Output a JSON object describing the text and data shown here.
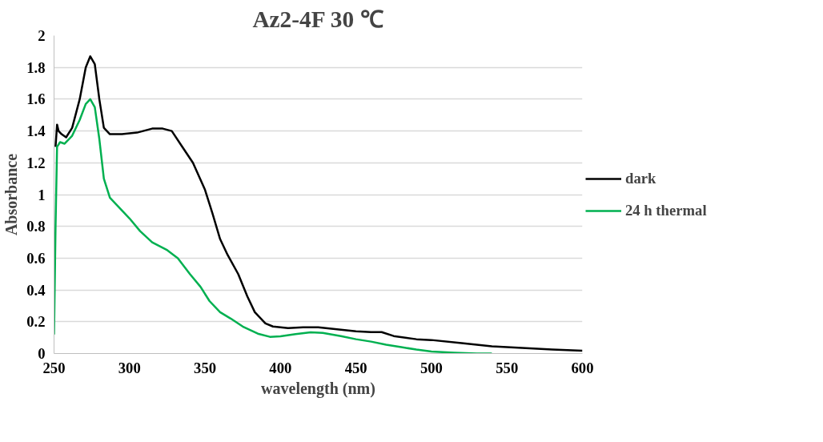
{
  "chart_data": {
    "type": "line",
    "title": "Az2-4F 30 ℃",
    "xlabel": "wavelength (nm)",
    "ylabel": "Absorbance",
    "xlim": [
      250,
      600
    ],
    "xticks": [
      250,
      300,
      350,
      400,
      450,
      500,
      550,
      600
    ],
    "ylim": [
      0,
      2
    ],
    "yticks": [
      0,
      0.2,
      0.4,
      0.6,
      0.8,
      1,
      1.2,
      1.4,
      1.6,
      1.8,
      2
    ],
    "grid": "y",
    "legend": "right",
    "line_style": "solid",
    "marker": "none",
    "series": [
      {
        "name": "dark",
        "color": "#000000",
        "x": [
          251,
          252,
          253,
          255,
          258,
          262,
          267,
          271,
          274,
          277,
          280,
          283,
          287,
          295,
          305,
          315,
          322,
          328,
          335,
          342,
          350,
          355,
          360,
          365,
          372,
          378,
          383,
          390,
          395,
          405,
          415,
          425,
          435,
          445,
          450,
          460,
          467,
          475,
          490,
          500,
          520,
          540,
          560,
          580,
          600
        ],
        "values": [
          1.3,
          1.44,
          1.4,
          1.38,
          1.36,
          1.42,
          1.6,
          1.8,
          1.87,
          1.82,
          1.6,
          1.42,
          1.38,
          1.38,
          1.39,
          1.415,
          1.415,
          1.4,
          1.3,
          1.2,
          1.03,
          0.88,
          0.72,
          0.62,
          0.5,
          0.36,
          0.26,
          0.19,
          0.17,
          0.16,
          0.165,
          0.165,
          0.155,
          0.145,
          0.14,
          0.135,
          0.135,
          0.11,
          0.09,
          0.085,
          0.065,
          0.045,
          0.035,
          0.025,
          0.018
        ]
      },
      {
        "name": "24 h thermal",
        "color": "#00b050",
        "x": [
          250,
          251,
          252,
          254,
          257,
          262,
          267,
          271,
          274,
          277,
          280,
          283,
          287,
          293,
          300,
          307,
          315,
          325,
          332,
          340,
          347,
          353,
          360,
          367,
          375,
          385,
          393,
          400,
          410,
          420,
          428,
          440,
          450,
          460,
          470,
          480,
          490,
          500,
          515,
          530,
          540
        ],
        "values": [
          0.12,
          0.8,
          1.3,
          1.33,
          1.32,
          1.37,
          1.47,
          1.57,
          1.6,
          1.55,
          1.35,
          1.1,
          0.98,
          0.92,
          0.85,
          0.77,
          0.7,
          0.65,
          0.6,
          0.5,
          0.42,
          0.33,
          0.26,
          0.22,
          0.17,
          0.125,
          0.105,
          0.108,
          0.122,
          0.133,
          0.13,
          0.11,
          0.09,
          0.075,
          0.055,
          0.04,
          0.025,
          0.013,
          0.005,
          0.0,
          0.0
        ]
      }
    ]
  }
}
